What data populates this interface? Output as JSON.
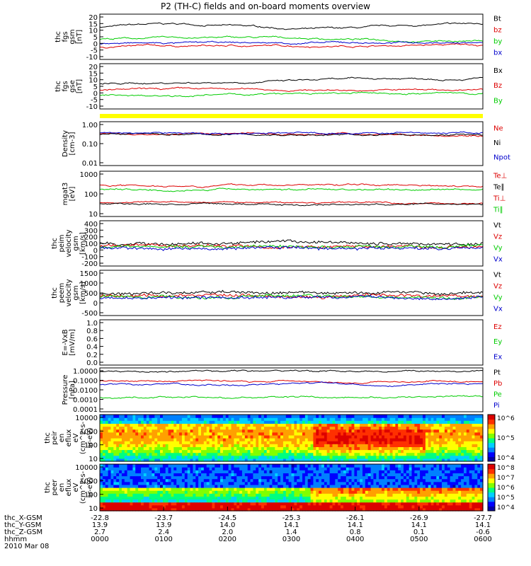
{
  "title": "P2 (TH-C) fields and on-board moments overview",
  "colors": {
    "black": "#000000",
    "red": "#dd0000",
    "green": "#00cc00",
    "blue": "#0000cc",
    "yellow": "#ffff00"
  },
  "chart_data": [
    {
      "type": "line",
      "ylabel": [
        "thc",
        "fgs",
        "gsm",
        "[nT]"
      ],
      "yticks": [
        "20",
        "15",
        "10",
        "5",
        "0",
        "-5",
        "-10"
      ],
      "series": [
        {
          "name": "Bt",
          "color": "black"
        },
        {
          "name": "bz",
          "color": "red"
        },
        {
          "name": "by",
          "color": "green"
        },
        {
          "name": "bx",
          "color": "blue"
        }
      ]
    },
    {
      "type": "line",
      "ylabel": [
        "thc",
        "fgs",
        "gse",
        "[nT]"
      ],
      "yticks": [
        "20",
        "15",
        "10",
        "5",
        "0",
        "-5",
        "-10"
      ],
      "series": [
        {
          "name": "Bx",
          "color": "black"
        },
        {
          "name": "Bz",
          "color": "red"
        },
        {
          "name": "By",
          "color": "green"
        }
      ]
    },
    {
      "type": "line",
      "ylabel": [
        "Density",
        "[cm-3]"
      ],
      "yticks": [
        "1.00",
        "0.10",
        "0.01"
      ],
      "log": true,
      "series": [
        {
          "name": "Ne",
          "color": "red"
        },
        {
          "name": "Ni",
          "color": "black"
        },
        {
          "name": "Npot",
          "color": "blue"
        }
      ]
    },
    {
      "type": "line",
      "ylabel": [
        "mgat3",
        "[eV]"
      ],
      "yticks": [
        "1000",
        "100",
        "10"
      ],
      "log": true,
      "series": [
        {
          "name": "Te⊥",
          "color": "red"
        },
        {
          "name": "Te∥",
          "color": "black"
        },
        {
          "name": "Ti⊥",
          "color": "red"
        },
        {
          "name": "Ti∥",
          "color": "green"
        }
      ]
    },
    {
      "type": "line",
      "ylabel": [
        "thc",
        "peim",
        "velocity",
        "gsm",
        "[km/s]"
      ],
      "yticks": [
        "400",
        "300",
        "200",
        "100",
        "0",
        "-100",
        "-200"
      ],
      "series": [
        {
          "name": "Vt",
          "color": "black"
        },
        {
          "name": "Vz",
          "color": "red"
        },
        {
          "name": "Vy",
          "color": "green"
        },
        {
          "name": "Vx",
          "color": "blue"
        }
      ]
    },
    {
      "type": "line",
      "ylabel": [
        "thc",
        "peem",
        "velocity",
        "gsm",
        "[km/s]"
      ],
      "yticks": [
        "1500",
        "1000",
        "500",
        "0",
        "-500"
      ],
      "series": [
        {
          "name": "Vt",
          "color": "black"
        },
        {
          "name": "Vz",
          "color": "red"
        },
        {
          "name": "Vy",
          "color": "green"
        },
        {
          "name": "Vx",
          "color": "blue"
        }
      ]
    },
    {
      "type": "line",
      "ylabel": [
        "E=-VxB",
        "[mV/m]"
      ],
      "yticks": [
        "1.0",
        "0.8",
        "0.6",
        "0.4",
        "0.2",
        "0.0"
      ],
      "series": [
        {
          "name": "Ez",
          "color": "red"
        },
        {
          "name": "Ey",
          "color": "green"
        },
        {
          "name": "Ex",
          "color": "blue"
        }
      ]
    },
    {
      "type": "line",
      "ylabel": [
        "Pressure",
        "[nPa]"
      ],
      "yticks": [
        "1.0000",
        "0.1000",
        "0.0100",
        "0.0010",
        "0.0001"
      ],
      "log": true,
      "series": [
        {
          "name": "Pt",
          "color": "black"
        },
        {
          "name": "Pb",
          "color": "red"
        },
        {
          "name": "Pe",
          "color": "green"
        },
        {
          "name": "Pi",
          "color": "blue"
        }
      ]
    },
    {
      "type": "heatmap",
      "ylabel": [
        "thc",
        "peir",
        "en",
        "eflux",
        "eV",
        "(cm^2-s-",
        "sr-eV)"
      ],
      "yticks": [
        "10000",
        "1000",
        "100",
        "10"
      ],
      "colorbar": [
        "10^6",
        "10^5",
        "10^4"
      ]
    },
    {
      "type": "heatmap",
      "ylabel": [
        "thc",
        "peer",
        "en",
        "eflux",
        "eV",
        "(cm^2-s-",
        "sr-eV)"
      ],
      "yticks": [
        "10000",
        "1000",
        "100",
        "10"
      ],
      "colorbar": [
        "10^8",
        "10^7",
        "10^6",
        "10^5",
        "10^4"
      ]
    }
  ],
  "xaxis": {
    "rows": [
      {
        "label": "thc_X-GSM",
        "values": [
          "-22.8",
          "-23.7",
          "-24.5",
          "-25.3",
          "-26.1",
          "-26.9",
          "-27.7"
        ]
      },
      {
        "label": "thc_Y-GSM",
        "values": [
          "13.9",
          "13.9",
          "14.0",
          "14.1",
          "14.1",
          "14.1",
          "14.1"
        ]
      },
      {
        "label": "thc_Z-GSM",
        "values": [
          "2.7",
          "2.4",
          "2.0",
          "1.4",
          "0.8",
          "0.1",
          "-0.6"
        ]
      },
      {
        "label": "hhmm",
        "values": [
          "0000",
          "0100",
          "0200",
          "0300",
          "0400",
          "0500",
          "0600"
        ]
      }
    ],
    "date": "2010 Mar 08"
  }
}
